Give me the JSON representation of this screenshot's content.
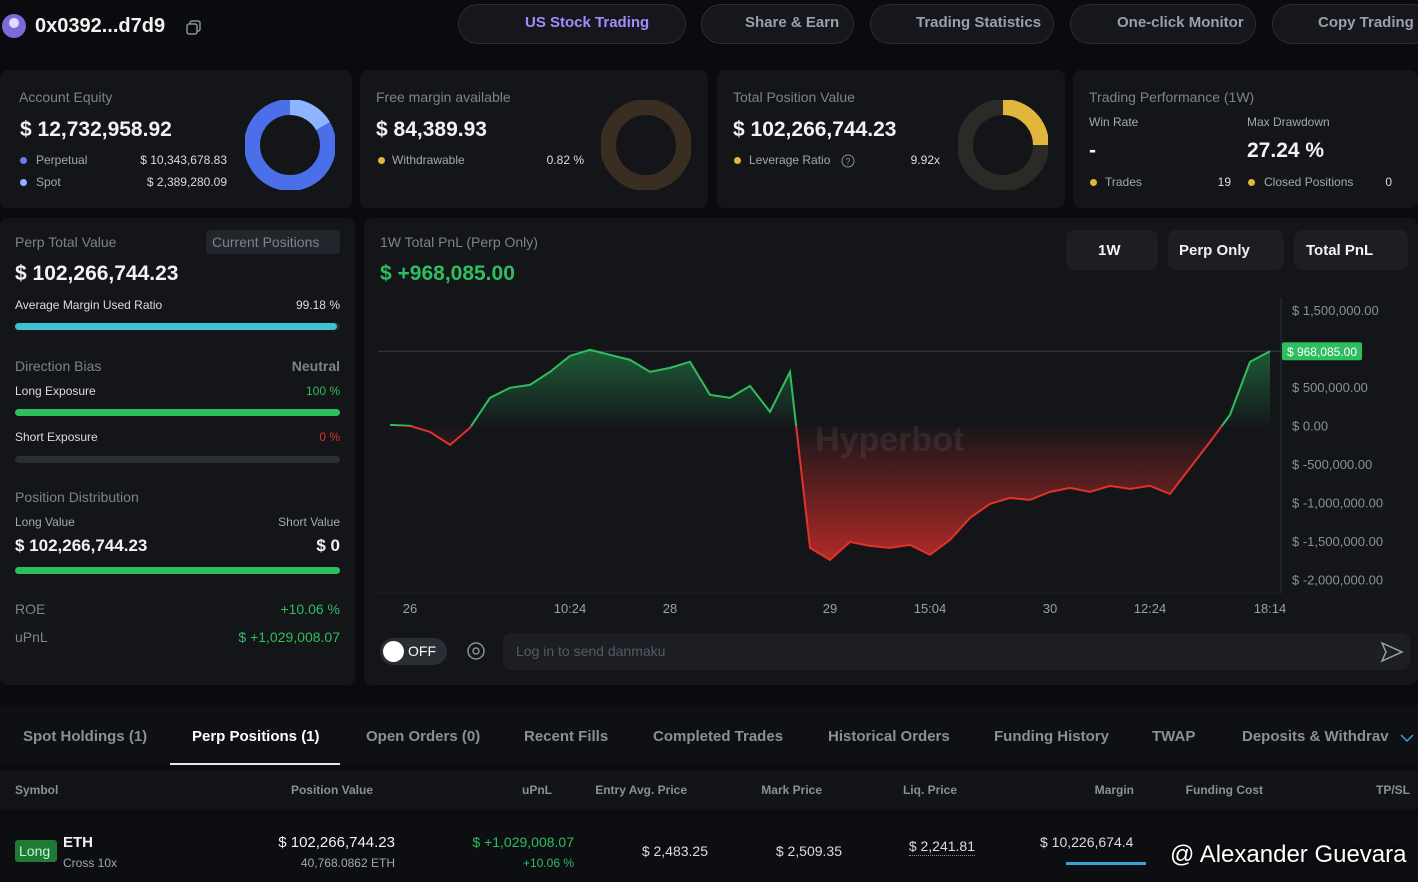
{
  "header": {
    "account": "0x0392...d7d9",
    "nav": [
      "US Stock Trading",
      "Share & Earn",
      "Trading Statistics",
      "One-click Monitor",
      "Copy Trading"
    ]
  },
  "equity_card": {
    "title": "Account Equity",
    "value": "$ 12,732,958.92",
    "rows": [
      {
        "label": "Perpetual",
        "value": "$ 10,343,678.83"
      },
      {
        "label": "Spot",
        "value": "$ 2,389,280.09"
      }
    ]
  },
  "margin_card": {
    "title": "Free margin available",
    "value": "$ 84,389.93",
    "row": {
      "label": "Withdrawable",
      "value": "0.82 %"
    }
  },
  "position_card": {
    "title": "Total Position Value",
    "value": "$ 102,266,744.23",
    "row": {
      "label": "Leverage Ratio",
      "value": "9.92x"
    }
  },
  "performance_card": {
    "title": "Trading Performance (1W)",
    "win_rate": {
      "label": "Win Rate",
      "value": "-"
    },
    "max_drawdown": {
      "label": "Max Drawdown",
      "value": "27.24 %"
    },
    "trades": {
      "label": "Trades",
      "value": "19"
    },
    "closed_positions": {
      "label": "Closed Positions",
      "value": "0"
    }
  },
  "perp_panel": {
    "title": "Perp Total Value",
    "button": "Current Positions",
    "value": "$ 102,266,744.23",
    "margin_ratio": {
      "label": "Average Margin Used Ratio",
      "value": 99.18,
      "value_label": "99.18 %"
    },
    "direction": {
      "title": "Direction Bias",
      "bias": "Neutral",
      "long": {
        "label": "Long Exposure",
        "value": 100,
        "value_label": "100 %"
      },
      "short": {
        "label": "Short Exposure",
        "value": 0,
        "value_label": "0 %"
      }
    },
    "distribution": {
      "title": "Position Distribution",
      "long_label": "Long Value",
      "short_label": "Short Value",
      "long_value": "$ 102,266,744.23",
      "short_value": "$ 0"
    },
    "roe": {
      "label": "ROE",
      "value": "+10.06 %"
    },
    "upnl": {
      "label": "uPnL",
      "value": "$ +1,029,008.07"
    }
  },
  "pnl_chart": {
    "type": "line",
    "title": "1W Total PnL (Perp Only)",
    "current_value": "$ +968,085.00",
    "controls": [
      "1W",
      "Perp Only",
      "Total PnL"
    ],
    "watermark": "Hyperbot",
    "categories": [
      null,
      "26",
      null,
      null,
      null,
      null,
      null,
      null,
      null,
      "10:24",
      null,
      null,
      null,
      null,
      "28",
      null,
      null,
      null,
      null,
      null,
      null,
      null,
      "29",
      null,
      null,
      null,
      null,
      "15:04",
      null,
      null,
      null,
      null,
      null,
      "30",
      null,
      null,
      null,
      null,
      "12:24",
      null,
      null,
      null,
      null,
      null,
      "18:14"
    ],
    "values": [
      13000,
      0,
      -78000,
      -247000,
      -26000,
      364000,
      494000,
      532000,
      701000,
      909000,
      987000,
      922000,
      857000,
      701000,
      753000,
      831000,
      403000,
      364000,
      519000,
      182000,
      701000,
      -1584000,
      -1740000,
      -1506000,
      -1558000,
      -1584000,
      -1545000,
      -1675000,
      -1481000,
      -1195000,
      -1013000,
      -935000,
      -961000,
      -857000,
      -805000,
      -857000,
      -779000,
      -818000,
      -779000,
      -883000,
      -545000,
      -208000,
      143000,
      831000,
      968085
    ],
    "last_value_label": "$ 968,085.00",
    "ylim": [
      -2170000,
      1660000
    ],
    "yticks": [
      {
        "value": 1500000,
        "label": "$ 1,500,000.00"
      },
      {
        "value": 500000,
        "label": "$ 500,000.00"
      },
      {
        "value": 0,
        "label": "$ 0.00"
      },
      {
        "value": -500000,
        "label": "$ -500,000.00"
      },
      {
        "value": -1000000,
        "label": "$ -1,000,000.00"
      },
      {
        "value": -1500000,
        "label": "$ -1,500,000.00"
      },
      {
        "value": -2000000,
        "label": "$ -2,000,000.00"
      }
    ],
    "up_color": "#2ebd5f",
    "down_color": "#e0312a"
  },
  "danmaku": {
    "toggle": "OFF",
    "placeholder": "Log in to send danmaku"
  },
  "tabs": {
    "items": [
      "Spot Holdings (1)",
      "Perp Positions (1)",
      "Open Orders (0)",
      "Recent Fills",
      "Completed Trades",
      "Historical Orders",
      "Funding History",
      "TWAP",
      "Deposits & Withdrav"
    ],
    "active": 1
  },
  "table": {
    "headers": [
      "Symbol",
      "Position Value",
      "uPnL",
      "Entry Avg. Price",
      "Mark Price",
      "Liq. Price",
      "Margin",
      "Funding Cost",
      "TP/SL"
    ],
    "rows": [
      {
        "side": "Long",
        "symbol": "ETH",
        "margin_mode": "Cross 10x",
        "position_value": "$ 102,266,744.23",
        "position_size": "40,768.0862 ETH",
        "upnl": "$ +1,029,008.07",
        "upnl_pct": "+10.06 %",
        "entry_price": "$ 2,483.25",
        "mark_price": "$ 2,509.35",
        "liq_price": "$ 2,241.81",
        "margin": "$ 10,226,674.4"
      }
    ]
  },
  "watermark": "@ Alexander Guevara"
}
